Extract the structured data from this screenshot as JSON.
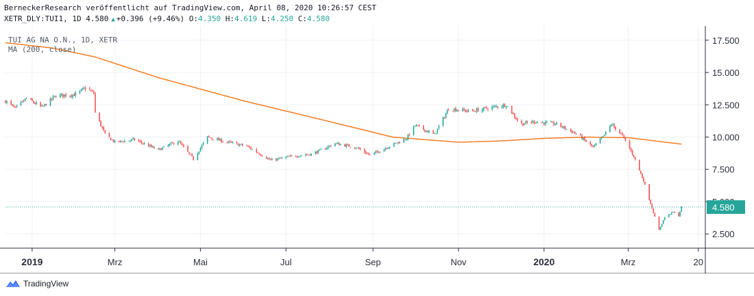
{
  "header": {
    "publish_line": "BerneckerResearch veröffentlicht auf TradingView.com, April 08, 2020 10:26:57 CEST",
    "symbol_info": "XETR_DLY:TUI1, 1D 4.580",
    "change": "+0.396 (+9.46%)",
    "o_label": "O:",
    "o_value": "4.350",
    "h_label": "H:",
    "h_value": "4.619",
    "l_label": "L:",
    "l_value": "4.250",
    "c_label": "C:",
    "c_value": "4.580"
  },
  "legend": {
    "symbol": "TUI AG NA O.N., 1D, XETR",
    "ma": "MA (200, close)"
  },
  "footer": {
    "brand": "TradingView"
  },
  "colors": {
    "up": "#26a69a",
    "down": "#ef5350",
    "ma": "#f57c1f",
    "grid": "#eef0f3",
    "axis": "#2a2e39"
  },
  "icons": {
    "header_arrow": "triangle-up-icon",
    "footer_logo": "tradingview-logo-icon"
  },
  "chart_data": {
    "type": "candlestick",
    "y_ticks": [
      "17.500",
      "15.000",
      "12.500",
      "10.000",
      "7.500",
      "5.000",
      "2.500"
    ],
    "y_tick_values": [
      17.5,
      15.0,
      12.5,
      10.0,
      7.5,
      5.0,
      2.5
    ],
    "ylim": [
      1.4,
      18.6
    ],
    "x_ticks": [
      "2019",
      "Mrz",
      "Mai",
      "Jul",
      "Sep",
      "Nov",
      "2020",
      "Mrz",
      "20"
    ],
    "x_tick_dates": [
      "2019-01-01",
      "2019-03-01",
      "2019-05-01",
      "2019-07-01",
      "2019-09-01",
      "2019-11-01",
      "2020-01-01",
      "2020-03-01",
      "2020-04-20"
    ],
    "bold_x_ticks": [
      "2019",
      "2020"
    ],
    "xlim": [
      "2018-12-13",
      "2020-04-25"
    ],
    "last_price": "4.580",
    "last_price_value": 4.58,
    "price_anchors": [
      [
        "2018-12-13",
        12.8
      ],
      [
        "2018-12-20",
        12.2
      ],
      [
        "2018-12-28",
        13.0
      ],
      [
        "2019-01-08",
        12.3
      ],
      [
        "2019-01-18",
        13.2
      ],
      [
        "2019-02-01",
        13.3
      ],
      [
        "2019-02-08",
        13.8
      ],
      [
        "2019-02-14",
        13.4
      ],
      [
        "2019-02-15",
        11.9
      ],
      [
        "2019-02-22",
        10.2
      ],
      [
        "2019-03-01",
        9.6
      ],
      [
        "2019-03-15",
        9.8
      ],
      [
        "2019-04-01",
        9.0
      ],
      [
        "2019-04-15",
        9.7
      ],
      [
        "2019-04-26",
        8.3
      ],
      [
        "2019-05-06",
        10.0
      ],
      [
        "2019-05-20",
        9.6
      ],
      [
        "2019-06-03",
        9.3
      ],
      [
        "2019-06-20",
        8.2
      ],
      [
        "2019-07-05",
        8.5
      ],
      [
        "2019-07-20",
        8.7
      ],
      [
        "2019-08-05",
        9.5
      ],
      [
        "2019-08-20",
        9.2
      ],
      [
        "2019-08-30",
        8.6
      ],
      [
        "2019-09-15",
        9.4
      ],
      [
        "2019-09-25",
        9.9
      ],
      [
        "2019-10-01",
        10.9
      ],
      [
        "2019-10-15",
        10.2
      ],
      [
        "2019-10-25",
        12.2
      ],
      [
        "2019-11-10",
        12.0
      ],
      [
        "2019-11-25",
        12.3
      ],
      [
        "2019-12-05",
        12.5
      ],
      [
        "2019-12-15",
        11.0
      ],
      [
        "2019-12-25",
        11.2
      ],
      [
        "2020-01-10",
        11.0
      ],
      [
        "2020-01-25",
        10.2
      ],
      [
        "2020-02-05",
        9.2
      ],
      [
        "2020-02-12",
        10.0
      ],
      [
        "2020-02-18",
        11.0
      ],
      [
        "2020-02-26",
        10.1
      ],
      [
        "2020-03-05",
        8.5
      ],
      [
        "2020-03-12",
        6.6
      ],
      [
        "2020-03-20",
        3.8
      ],
      [
        "2020-03-23",
        2.8
      ],
      [
        "2020-03-27",
        3.8
      ],
      [
        "2020-04-02",
        4.2
      ],
      [
        "2020-04-06",
        3.9
      ],
      [
        "2020-04-08",
        4.58
      ]
    ],
    "ma_anchors": [
      [
        "2018-12-13",
        17.3
      ],
      [
        "2019-01-15",
        16.9
      ],
      [
        "2019-02-15",
        16.2
      ],
      [
        "2019-04-01",
        14.6
      ],
      [
        "2019-06-01",
        12.8
      ],
      [
        "2019-08-01",
        11.2
      ],
      [
        "2019-09-15",
        10.0
      ],
      [
        "2019-11-01",
        9.6
      ],
      [
        "2019-12-01",
        9.7
      ],
      [
        "2020-01-01",
        9.9
      ],
      [
        "2020-02-01",
        10.0
      ],
      [
        "2020-03-01",
        9.95
      ],
      [
        "2020-04-08",
        9.45
      ]
    ]
  }
}
